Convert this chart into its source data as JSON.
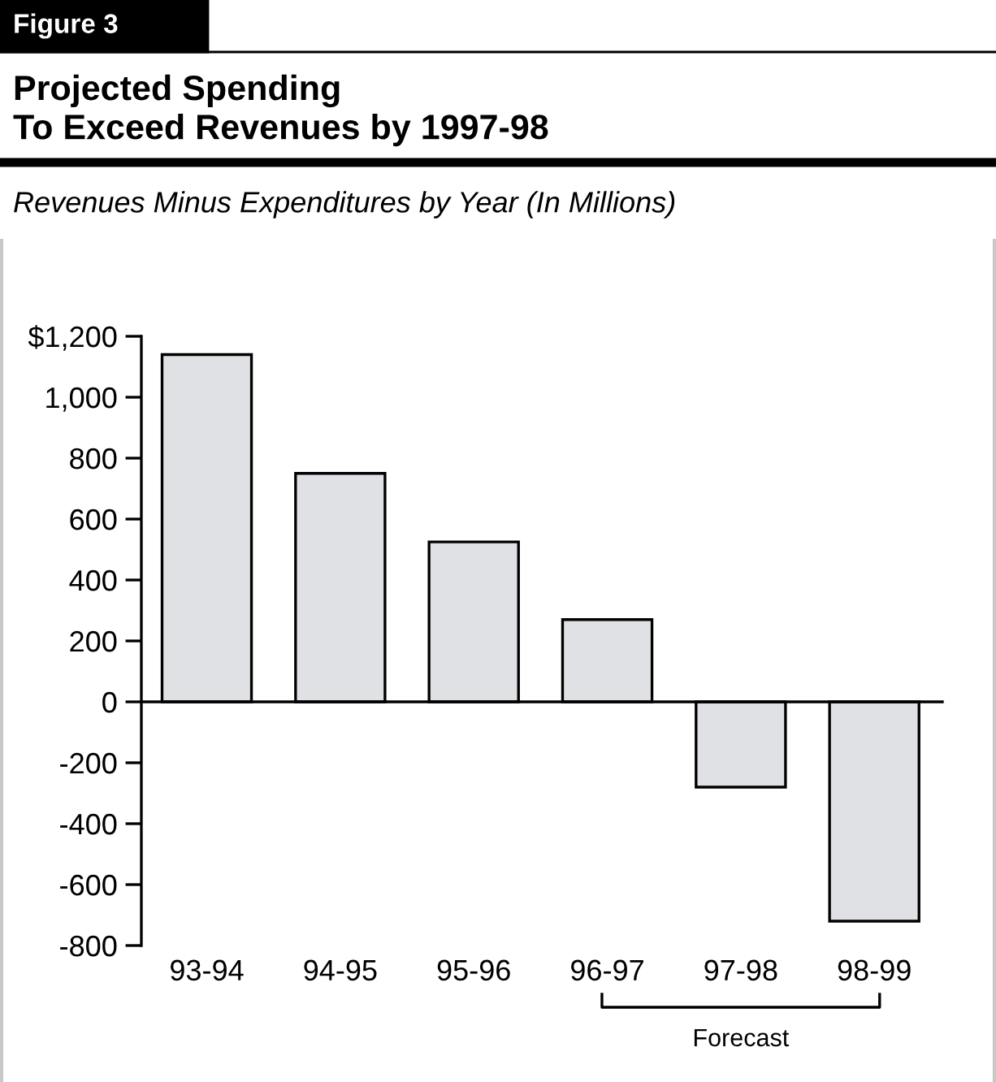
{
  "chart_data": {
    "type": "bar",
    "title": "Projected Spending\nTo Exceed Revenues by 1997-98",
    "subtitle": "Revenues Minus Expenditures by Year (In Millions)",
    "annotations": [
      "Figure 3",
      "Forecast"
    ],
    "categories": [
      "93-94",
      "94-95",
      "95-96",
      "96-97",
      "97-98",
      "98-99"
    ],
    "values": [
      1140,
      750,
      525,
      270,
      -280,
      -720
    ],
    "color": "#dfe1e5",
    "ylim": [
      -800,
      1200
    ],
    "yticks": [
      -800,
      -600,
      -400,
      -200,
      0,
      200,
      400,
      600,
      800,
      {
        "value": 1000,
        "label": "1,000"
      },
      {
        "value": 1200,
        "label": "$1,200"
      }
    ],
    "legend": false
  }
}
